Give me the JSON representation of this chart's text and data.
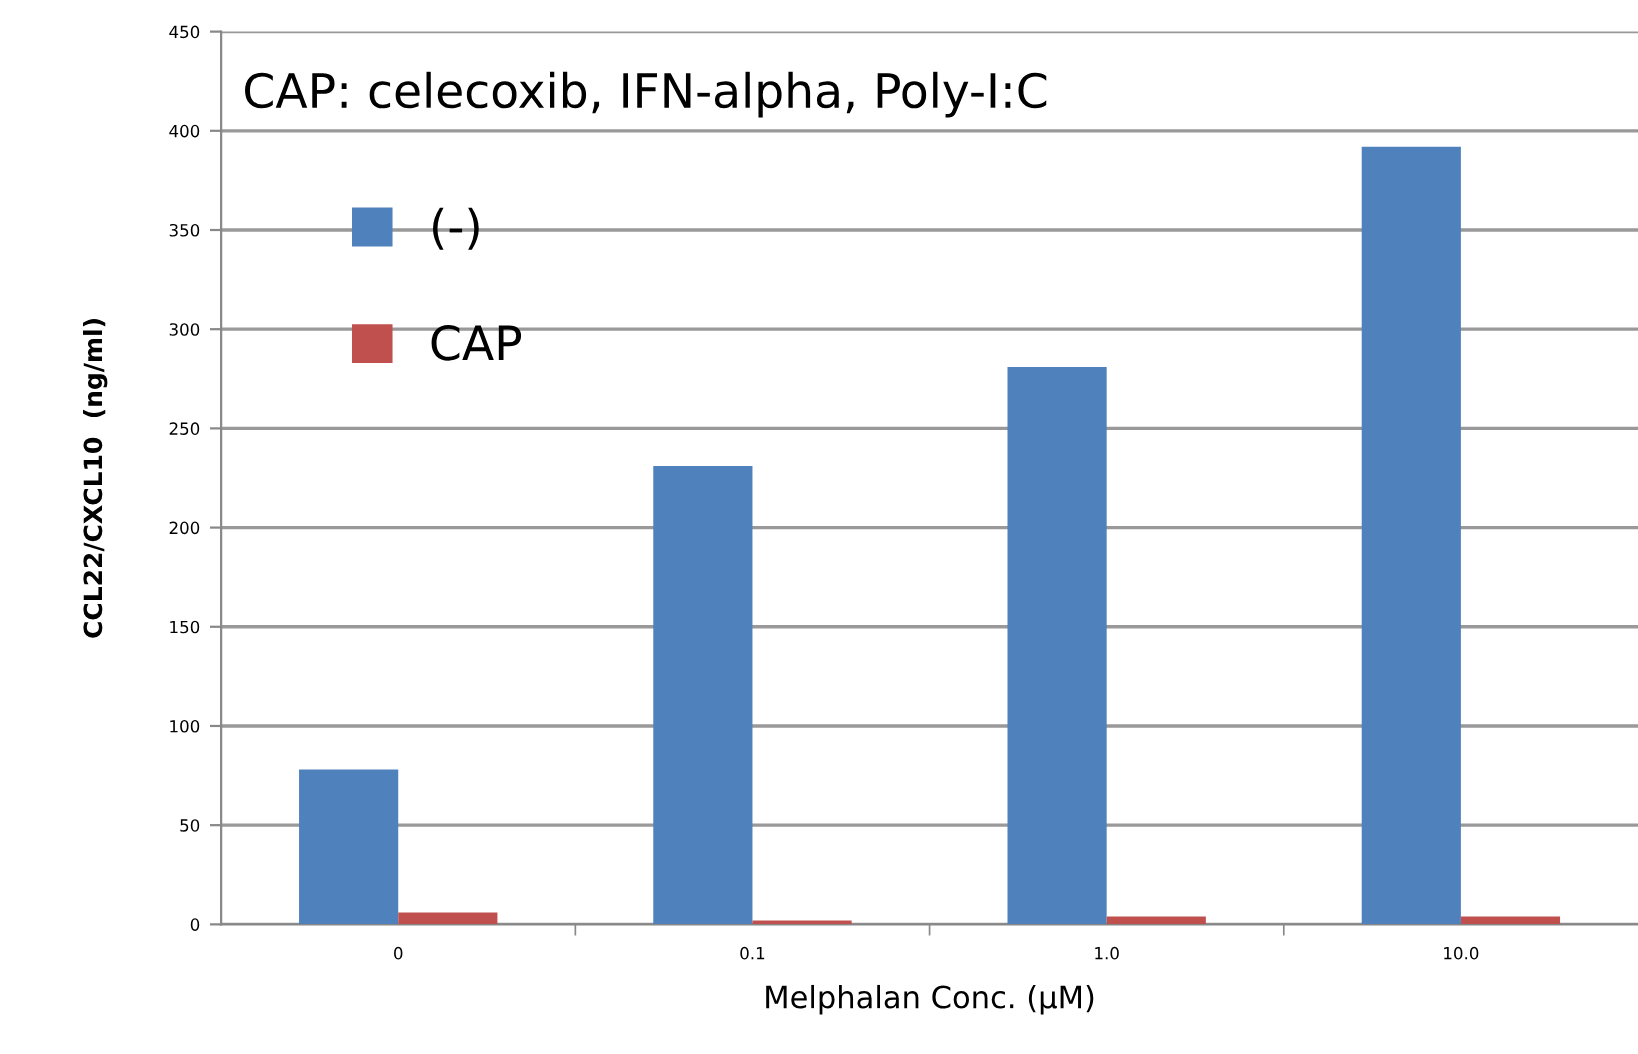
{
  "chart_data": {
    "type": "bar",
    "title": "CAP: celecoxib, IFN-alpha, Poly-I:C",
    "xlabel": "Melphalan Conc. (µM)",
    "ylabel": "CCL22/CXCL10  (ng/ml)",
    "categories": [
      "0",
      "0.1",
      "1.0",
      "10.0"
    ],
    "series": [
      {
        "name": "(-)",
        "color": "#4f81bd",
        "values": [
          78,
          231,
          281,
          392
        ]
      },
      {
        "name": "CAP",
        "color": "#c0504d",
        "values": [
          6,
          2,
          4,
          4
        ]
      }
    ],
    "ylim": [
      0,
      450
    ],
    "yticks": [
      0,
      50,
      100,
      150,
      200,
      250,
      300,
      350,
      400,
      450
    ],
    "grid": "y",
    "legend": "top left"
  }
}
